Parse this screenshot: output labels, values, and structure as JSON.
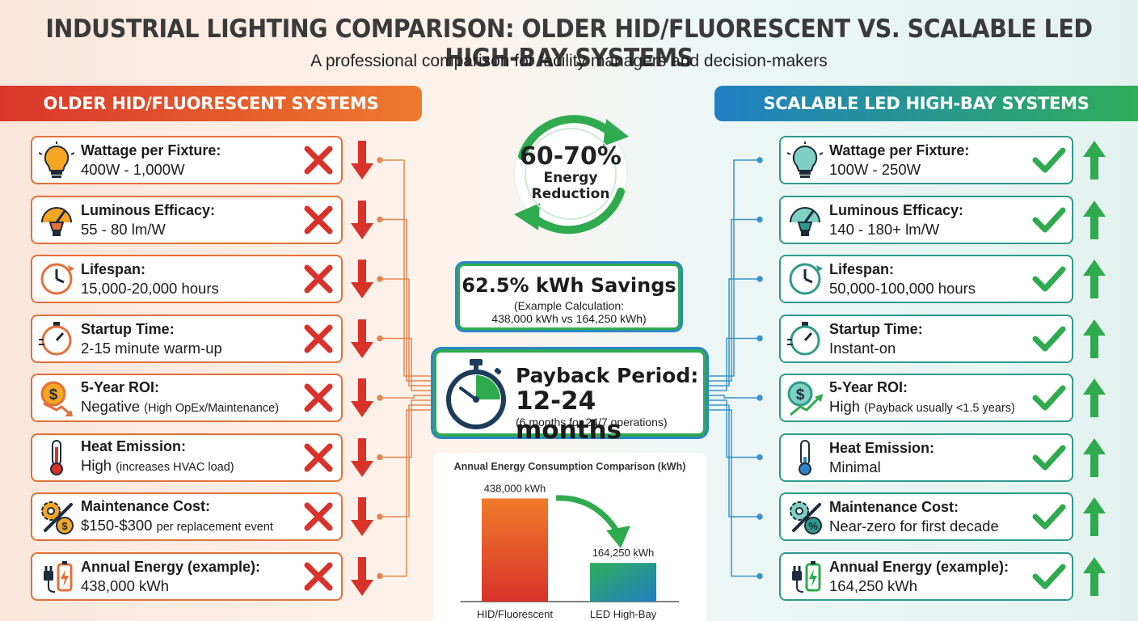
{
  "header": {
    "title": "INDUSTRIAL LIGHTING COMPARISON: OLDER HID/FLUORESCENT VS. SCALABLE LED HIGH-BAY SYSTEMS",
    "subtitle": "A professional comparison for facility managers and decision-makers"
  },
  "left": {
    "banner": "OLDER HID/FLUORESCENT SYSTEMS",
    "items": [
      {
        "label": "Wattage per Fixture:",
        "value": "400W - 1,000W",
        "note": "",
        "icon": "lightbulb-icon"
      },
      {
        "label": "Luminous Efficacy:",
        "value": "55 - 80 lm/W",
        "note": "",
        "icon": "gauge-bulb-icon"
      },
      {
        "label": "Lifespan:",
        "value": "15,000-20,000 hours",
        "note": "",
        "icon": "clock-icon"
      },
      {
        "label": "Startup Time:",
        "value": "2-15 minute warm-up",
        "note": "",
        "icon": "stopwatch-icon"
      },
      {
        "label": "5-Year ROI:",
        "value": "Negative",
        "note": "(High OpEx/Maintenance)",
        "icon": "dollar-down-icon"
      },
      {
        "label": "Heat Emission:",
        "value": "High",
        "note": "(increases HVAC load)",
        "icon": "thermometer-icon"
      },
      {
        "label": "Maintenance Cost:",
        "value": "$150-$300",
        "note": "per replacement event",
        "icon": "gear-wrench-icon"
      },
      {
        "label": "Annual Energy (example):",
        "value": "438,000 kWh",
        "note": "",
        "icon": "plug-battery-icon"
      }
    ]
  },
  "right": {
    "banner": "SCALABLE LED HIGH-BAY SYSTEMS",
    "items": [
      {
        "label": "Wattage per Fixture:",
        "value": "100W - 250W",
        "note": "",
        "icon": "lightbulb-icon"
      },
      {
        "label": "Luminous Efficacy:",
        "value": "140 - 180+ lm/W",
        "note": "",
        "icon": "gauge-bulb-icon"
      },
      {
        "label": "Lifespan:",
        "value": "50,000-100,000 hours",
        "note": "",
        "icon": "clock-icon"
      },
      {
        "label": "Startup Time:",
        "value": "Instant-on",
        "note": "",
        "icon": "stopwatch-icon"
      },
      {
        "label": "5-Year ROI:",
        "value": "High",
        "note": "(Payback usually <1.5 years)",
        "icon": "dollar-up-icon"
      },
      {
        "label": "Heat Emission:",
        "value": "Minimal",
        "note": "",
        "icon": "thermometer-icon"
      },
      {
        "label": "Maintenance Cost:",
        "value": "Near-zero for first decade",
        "note": "",
        "icon": "gear-percent-icon"
      },
      {
        "label": "Annual Energy (example):",
        "value": "164,250 kWh",
        "note": "",
        "icon": "plug-battery-icon"
      }
    ]
  },
  "center": {
    "reduction_value": "60-70%",
    "reduction_label_1": "Energy",
    "reduction_label_2": "Reduction",
    "savings_title": "62.5% kWh Savings",
    "savings_note_1": "(Example Calculation:",
    "savings_note_2": "438,000 kWh vs 164,250 kWh)",
    "payback_title": "Payback Period:",
    "payback_value": "12-24 months",
    "payback_note": "(6 months for 24/7 operations)"
  },
  "colors": {
    "old_accent": "#e2703a",
    "led_accent": "#2f9a8a",
    "bad": "#d8322a",
    "good": "#2faa4e",
    "blue": "#2b86c7"
  },
  "chart_data": {
    "type": "bar",
    "title": "Annual Energy Consumption Comparison (kWh)",
    "categories": [
      "HID/Fluorescent",
      "LED High-Bay"
    ],
    "values": [
      438000,
      164250
    ],
    "data_labels": [
      "438,000 kWh",
      "164,250 kWh"
    ],
    "ylim": [
      0,
      500000
    ],
    "grid": false
  }
}
